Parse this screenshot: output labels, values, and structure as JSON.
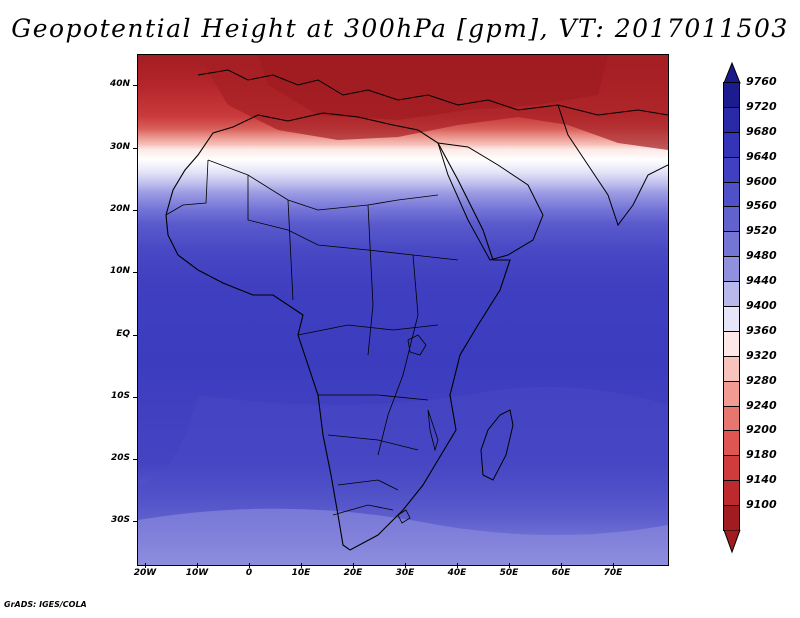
{
  "title": "Geopotential Height at 300hPa [gpm], VT: 2017011503",
  "y_axis_labels": [
    "40N",
    "30N",
    "20N",
    "10N",
    "EQ",
    "10S",
    "20S",
    "30S"
  ],
  "x_axis_labels": [
    "20W",
    "10W",
    "0",
    "10E",
    "20E",
    "30E",
    "40E",
    "50E",
    "60E",
    "70E"
  ],
  "colorbar": {
    "levels": [
      "9760",
      "9720",
      "9680",
      "9640",
      "9600",
      "9560",
      "9520",
      "9480",
      "9440",
      "9400",
      "9360",
      "9320",
      "9280",
      "9240",
      "9200",
      "9180",
      "9140",
      "9100"
    ],
    "colors": [
      "#1c1c8f",
      "#2a2aa8",
      "#3434b9",
      "#4040c1",
      "#5050c8",
      "#6262cf",
      "#7575d6",
      "#9090df",
      "#b8b8ec",
      "#e6e6f8",
      "#fce8e6",
      "#f8c3bd",
      "#f19b93",
      "#e77670",
      "#de5553",
      "#d03c3d",
      "#bc2a2e",
      "#a01c20"
    ]
  },
  "credit": "GrADS: IGES/COLA"
}
